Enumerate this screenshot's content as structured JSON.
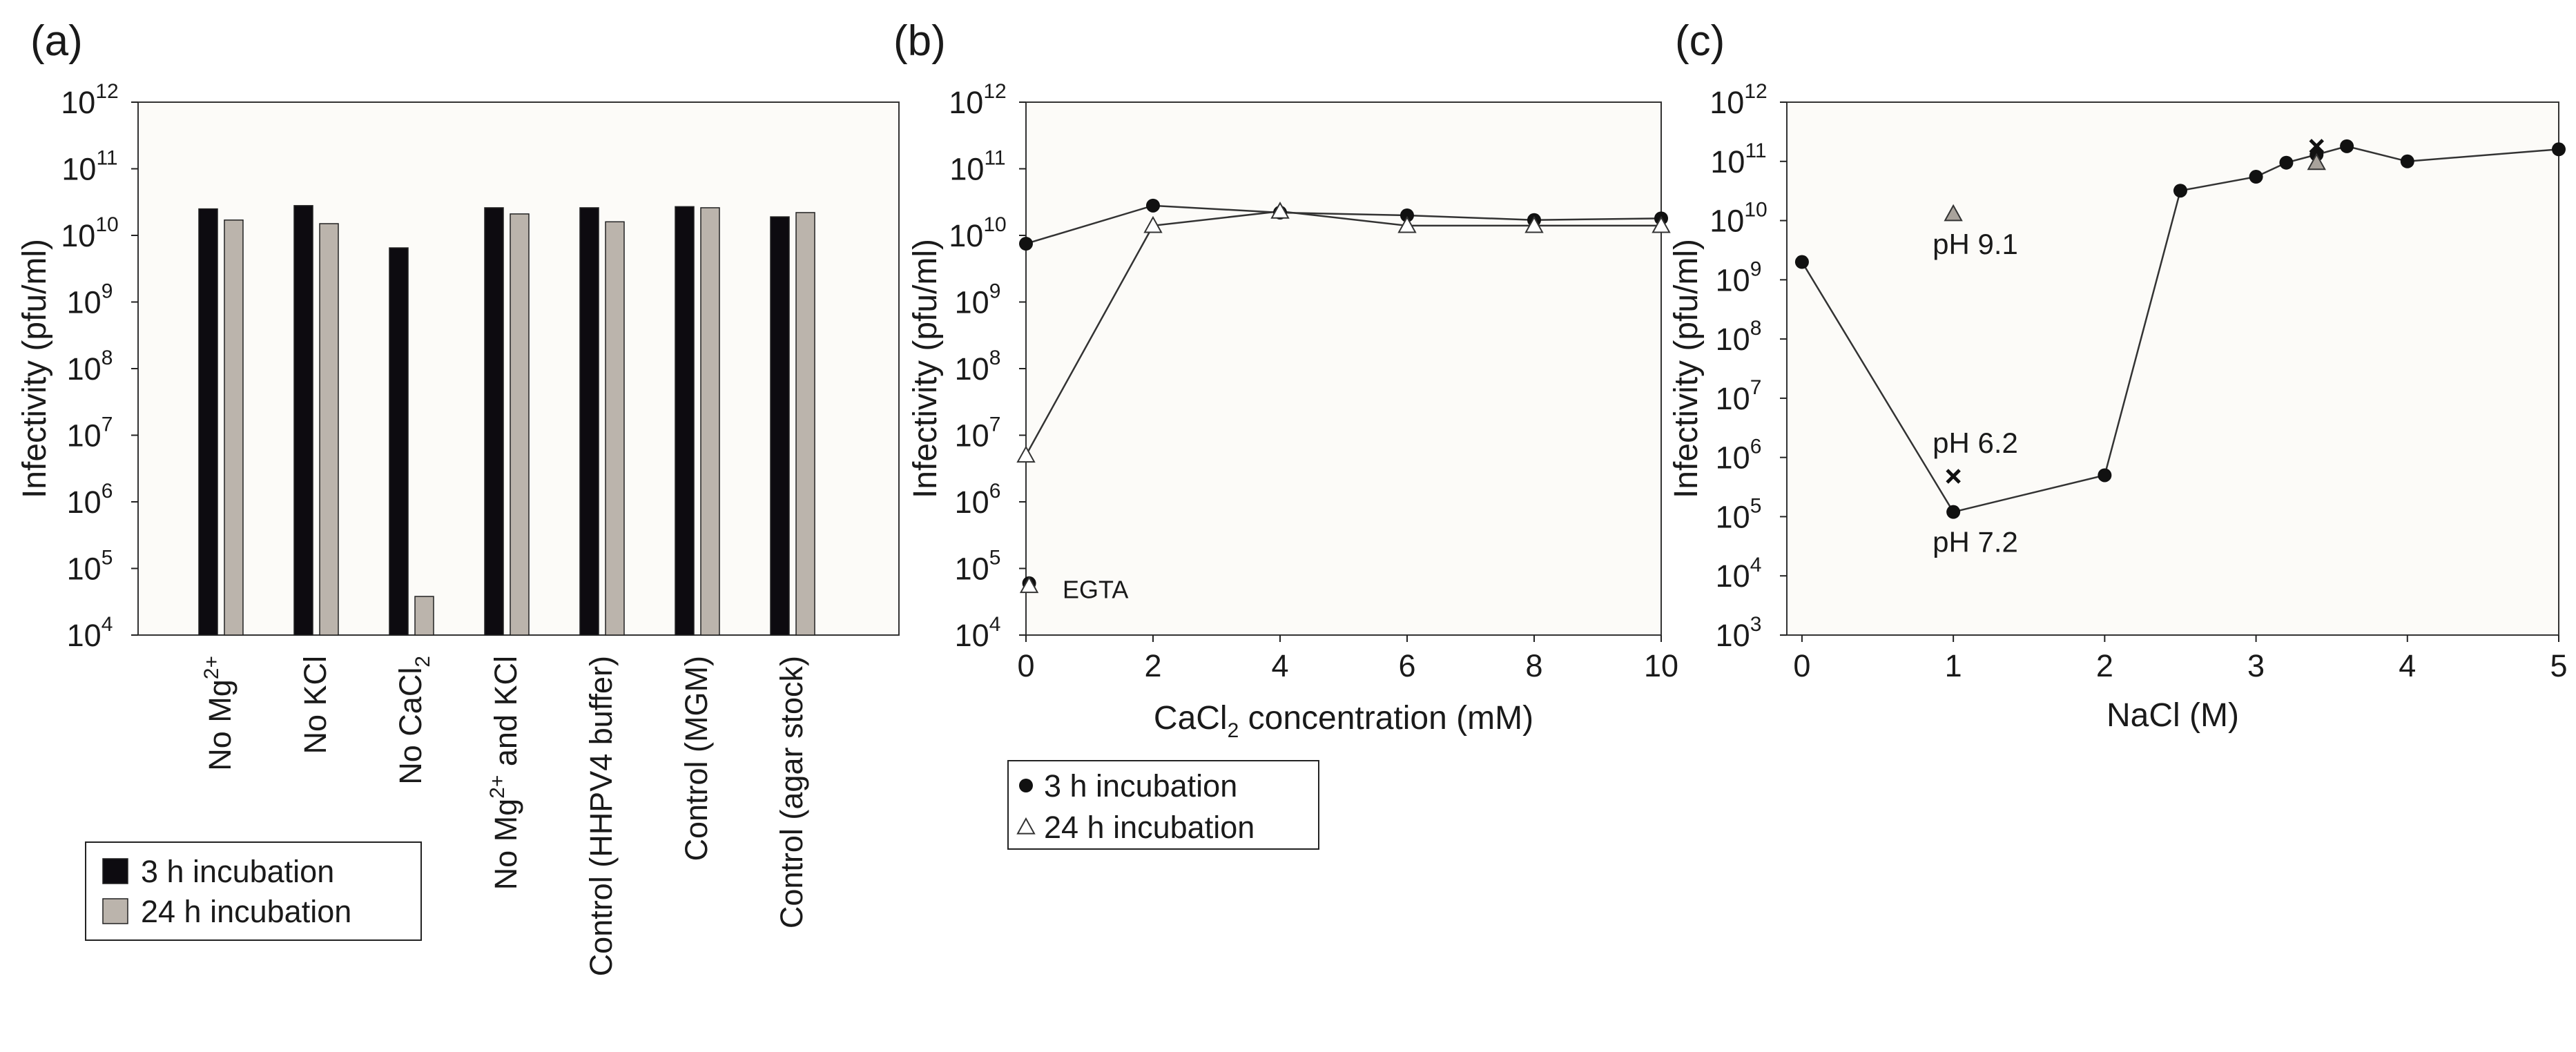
{
  "chart_data": [
    {
      "panel": "(a)",
      "type": "bar",
      "ylabel": "Infectivity (pfu/ml)",
      "yscale": "log",
      "ylim_exp": [
        4,
        12
      ],
      "ytick_base": "10",
      "ytick_exponents": [
        "4",
        "5",
        "6",
        "7",
        "8",
        "9",
        "10",
        "11",
        "12"
      ],
      "categories": [
        {
          "main": "No Mg",
          "sup": "2+",
          "tail": ""
        },
        {
          "main": "No KCl",
          "sup": "",
          "tail": ""
        },
        {
          "main": "No CaCl",
          "sub": "2",
          "tail": ""
        },
        {
          "main": "No Mg",
          "sup": "2+",
          "tail": " and KCl"
        },
        {
          "main": "Control (HHPV4 buffer)",
          "sup": "",
          "tail": ""
        },
        {
          "main": "Control (MGM)",
          "sup": "",
          "tail": ""
        },
        {
          "main": "Control (agar stock)",
          "sup": "",
          "tail": ""
        }
      ],
      "series": [
        {
          "name": "3 h incubation",
          "color": "#0d0b10",
          "values": [
            25000000000.0,
            28000000000.0,
            6500000000.0,
            26000000000.0,
            26000000000.0,
            27000000000.0,
            19000000000.0
          ]
        },
        {
          "name": "24 h incubation",
          "color": "#bbb4ac",
          "values": [
            17000000000.0,
            15000000000.0,
            38000.0,
            21000000000.0,
            16000000000.0,
            26000000000.0,
            22000000000.0
          ]
        }
      ],
      "legend": [
        "3 h incubation",
        "24 h incubation"
      ]
    },
    {
      "panel": "(b)",
      "type": "line",
      "xlabel_main": "CaCl",
      "xlabel_sub": "2",
      "xlabel_tail": " concentration (mM)",
      "ylabel": "Infectivity (pfu/ml)",
      "yscale": "log",
      "xlim": [
        0,
        10
      ],
      "ylim_exp": [
        4,
        12
      ],
      "xticks": [
        "0",
        "2",
        "4",
        "6",
        "8",
        "10"
      ],
      "ytick_base": "10",
      "ytick_exponents": [
        "4",
        "5",
        "6",
        "7",
        "8",
        "9",
        "10",
        "11",
        "12"
      ],
      "series": [
        {
          "name": "3 h incubation",
          "marker": "circle",
          "x": [
            0,
            2,
            4,
            6,
            8,
            10
          ],
          "y": [
            7500000000.0,
            28000000000.0,
            22000000000.0,
            20000000000.0,
            17000000000.0,
            18000000000.0
          ]
        },
        {
          "name": "24 h incubation",
          "marker": "triangle",
          "x": [
            0,
            2,
            4,
            6,
            8,
            10
          ],
          "y": [
            5000000.0,
            14000000000.0,
            23000000000.0,
            14000000000.0,
            14000000000.0,
            14000000000.0
          ]
        }
      ],
      "extra_points": [
        {
          "marker": "circle",
          "x": 0.05,
          "y": 60000.0
        },
        {
          "marker": "triangle",
          "x": 0.05,
          "y": 55000.0
        }
      ],
      "annotations": [
        {
          "text": "EGTA",
          "x": 0.25,
          "y": 50000.0
        }
      ],
      "legend": [
        "3 h incubation",
        "24 h incubation"
      ]
    },
    {
      "panel": "(c)",
      "type": "line",
      "xlabel": "NaCl (M)",
      "ylabel": "Infectivity (pfu/ml)",
      "yscale": "log",
      "xlim": [
        -0.1,
        5
      ],
      "ylim_exp": [
        3,
        12
      ],
      "xticks": [
        "0",
        "1",
        "2",
        "3",
        "4",
        "5"
      ],
      "ytick_base": "10",
      "ytick_exponents": [
        "3",
        "4",
        "5",
        "6",
        "7",
        "8",
        "9",
        "10",
        "11",
        "12"
      ],
      "series": [
        {
          "name": "3 h incubation",
          "marker": "circle",
          "x": [
            0,
            1,
            2,
            2.5,
            3,
            3.2,
            3.4,
            3.6,
            4,
            5
          ],
          "y": [
            2000000000.0,
            120000.0,
            500000.0,
            32000000000.0,
            55000000000.0,
            95000000000.0,
            130000000000.0,
            180000000000.0,
            100000000000.0,
            160000000000.0
          ]
        }
      ],
      "extra_points": [
        {
          "marker": "cross",
          "x": 1,
          "y": 480000.0
        },
        {
          "marker": "triangle-gray",
          "x": 1,
          "y": 13000000000.0
        },
        {
          "marker": "cross",
          "x": 3.4,
          "y": 180000000000.0
        },
        {
          "marker": "triangle-gray",
          "x": 3.4,
          "y": 95000000000.0
        }
      ],
      "annotations": [
        {
          "text": "pH 9.1",
          "x": 1,
          "y": 13000000000.0,
          "pos": "below"
        },
        {
          "text": "pH 6.2",
          "x": 1,
          "y": 480000.0,
          "pos": "above"
        },
        {
          "text": "pH 7.2",
          "x": 1,
          "y": 120000.0,
          "pos": "below"
        }
      ]
    }
  ]
}
